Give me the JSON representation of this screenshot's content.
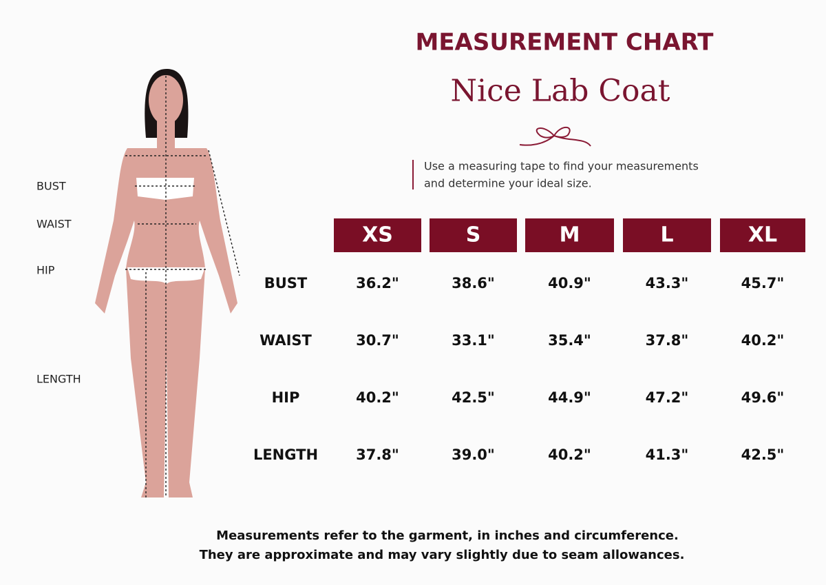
{
  "header": {
    "title": "MEASUREMENT CHART",
    "subtitle": "Nice Lab Coat"
  },
  "intro": {
    "lines": [
      "Use a measuring tape to find your measurements",
      "and determine your ideal size."
    ]
  },
  "figure": {
    "labels": [
      "BUST",
      "WAIST",
      "HIP",
      "LENGTH"
    ]
  },
  "table": {
    "columns": [
      "XS",
      "S",
      "M",
      "L",
      "XL"
    ],
    "rows": [
      {
        "label": "BUST",
        "values": [
          "36.2\"",
          "38.6\"",
          "40.9\"",
          "43.3\"",
          "45.7\""
        ]
      },
      {
        "label": "WAIST",
        "values": [
          "30.7\"",
          "33.1\"",
          "35.4\"",
          "37.8\"",
          "40.2\""
        ]
      },
      {
        "label": "HIP",
        "values": [
          "40.2\"",
          "42.5\"",
          "44.9\"",
          "47.2\"",
          "49.6\""
        ]
      },
      {
        "label": "LENGTH",
        "values": [
          "37.8\"",
          "39.0\"",
          "40.2\"",
          "41.3\"",
          "42.5\""
        ]
      }
    ]
  },
  "footer": {
    "lines": [
      "Measurements refer to the garment, in inches and circumference.",
      "They are approximate and may vary slightly due to seam allowances."
    ]
  }
}
